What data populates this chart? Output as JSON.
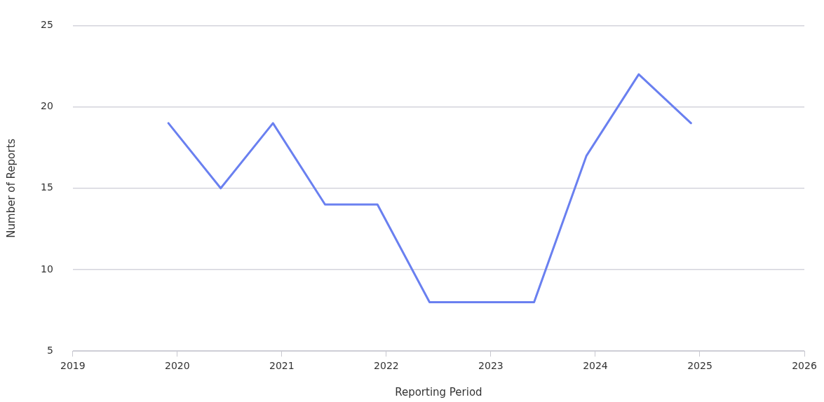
{
  "chart_data": {
    "type": "line",
    "xlabel": "Reporting Period",
    "ylabel": "Number of Reports",
    "x": [
      "2019-12-01",
      "2020-06-01",
      "2020-12-01",
      "2021-06-01",
      "2021-12-01",
      "2022-06-01",
      "2022-12-01",
      "2023-06-01",
      "2023-12-01",
      "2024-06-01",
      "2024-12-01"
    ],
    "series": [
      {
        "color": "#6a80f0",
        "values": [
          19,
          15,
          19,
          14,
          14,
          8,
          8,
          8,
          17,
          22,
          19
        ]
      }
    ],
    "xlim": [
      "2019",
      "2026"
    ],
    "xticks": [
      "2019",
      "2020",
      "2021",
      "2022",
      "2023",
      "2024",
      "2025",
      "2026"
    ],
    "ylim": [
      5,
      25
    ],
    "yticks": [
      5,
      10,
      15,
      20,
      25
    ],
    "grid": "y",
    "legend": false,
    "marker": "none",
    "line_style": "solid"
  }
}
